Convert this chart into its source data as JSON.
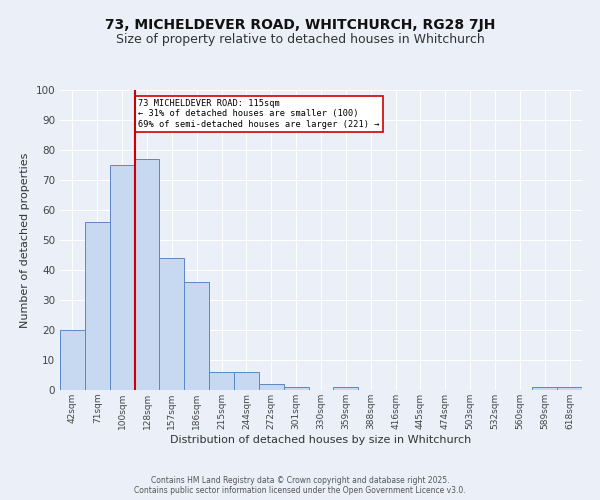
{
  "title1": "73, MICHELDEVER ROAD, WHITCHURCH, RG28 7JH",
  "title2": "Size of property relative to detached houses in Whitchurch",
  "xlabel": "Distribution of detached houses by size in Whitchurch",
  "ylabel": "Number of detached properties",
  "bar_labels": [
    "42sqm",
    "71sqm",
    "100sqm",
    "128sqm",
    "157sqm",
    "186sqm",
    "215sqm",
    "244sqm",
    "272sqm",
    "301sqm",
    "330sqm",
    "359sqm",
    "388sqm",
    "416sqm",
    "445sqm",
    "474sqm",
    "503sqm",
    "532sqm",
    "560sqm",
    "589sqm",
    "618sqm"
  ],
  "bar_values": [
    20,
    56,
    75,
    77,
    44,
    36,
    6,
    6,
    2,
    1,
    0,
    1,
    0,
    0,
    0,
    0,
    0,
    0,
    0,
    1,
    1
  ],
  "bar_color": "#c6d9f1",
  "bar_edge_color": "#5b87c5",
  "vline_x": 2.5,
  "vline_color": "#cc0000",
  "annotation_text": "73 MICHELDEVER ROAD: 115sqm\n← 31% of detached houses are smaller (100)\n69% of semi-detached houses are larger (221) →",
  "annotation_box_color": "#ffffff",
  "annotation_box_edge": "#cc0000",
  "ylim": [
    0,
    100
  ],
  "yticks": [
    0,
    10,
    20,
    30,
    40,
    50,
    60,
    70,
    80,
    90,
    100
  ],
  "background_color": "#eaeff8",
  "footer1": "Contains HM Land Registry data © Crown copyright and database right 2025.",
  "footer2": "Contains public sector information licensed under the Open Government Licence v3.0.",
  "title1_fontsize": 10,
  "title2_fontsize": 9
}
